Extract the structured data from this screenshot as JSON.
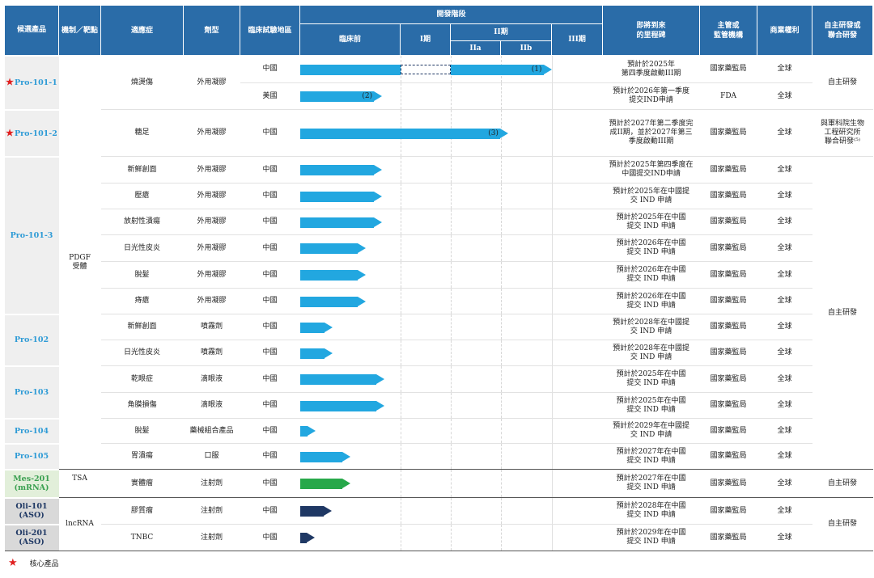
{
  "header": {
    "product": "候選產品",
    "mechanism": "機制／靶點",
    "indication": "適應症",
    "form": "劑型",
    "region": "臨床試驗地區",
    "stage": "開發階段",
    "preclinical": "臨床前",
    "phase1": "I期",
    "phase2": "II期",
    "phase2a": "IIa",
    "phase2b": "IIb",
    "phase3": "III期",
    "milestone": "即將到來\n的里程碑",
    "regulator": "主管或\n監管機構",
    "rights": "商業權利",
    "dev": "自主研發或\n聯合研發"
  },
  "colors": {
    "header": "#2a6ca8",
    "pdgf_arrow": "#22a7e0",
    "tsa_arrow": "#27a84a",
    "lncrna_arrow": "#1f3864",
    "star": "#e02020"
  },
  "stage_scale_note_units": "0=臨床前 start, 1=I期, 2=IIa, 3=IIb, 4=III期, 5=III期 end",
  "rows": [
    {
      "mech": "PDGF\n受體",
      "product": "Pro-101-1",
      "star": true,
      "style": "blue",
      "indication": "燒燙傷",
      "form": "外用凝膠",
      "region": "中國",
      "progress": 4.0,
      "label": "(1)",
      "phase1_dashed": true,
      "milestone": "預計於2025年\n第四季度啟動III期",
      "regulator": "國家藥監局",
      "rights": "全球",
      "dev": "自主研發"
    },
    {
      "mech": "PDGF\n受體",
      "product": "Pro-101-1",
      "star": true,
      "style": "blue",
      "indication": "燒燙傷",
      "form": "外用凝膠",
      "region": "美國",
      "progress": 0.82,
      "label": "(2)",
      "milestone": "預計於2026年第一季度\n提交IND申請",
      "regulator": "FDA",
      "rights": "全球",
      "dev": "自主研發"
    },
    {
      "mech": "PDGF\n受體",
      "product": "Pro-101-2",
      "star": true,
      "style": "blue",
      "indication": "糖足",
      "form": "外用凝膠",
      "region": "中國",
      "progress": 3.15,
      "label": "(3)",
      "milestone": "預計於2027年第二季度完\n成II期，並於2027年第三\n季度啟動III期",
      "regulator": "國家藥監局",
      "rights": "全球",
      "dev": "與軍科院生物\n工程研究所\n聯合研發⁽⁵⁾"
    },
    {
      "mech": "PDGF\n受體",
      "product": "Pro-101-3",
      "style": "blue",
      "indication": "新鮮創面",
      "form": "外用凝膠",
      "region": "中國",
      "progress": 0.82,
      "milestone": "預計於2025年第四季度在\n中國提交IND申請",
      "regulator": "國家藥監局",
      "rights": "全球",
      "dev": "自主研發"
    },
    {
      "mech": "PDGF\n受體",
      "product": "Pro-101-3",
      "style": "blue",
      "indication": "壓瘡",
      "form": "外用凝膠",
      "region": "中國",
      "progress": 0.82,
      "milestone": "預計於2025年在中國提\n交 IND 申請",
      "regulator": "國家藥監局",
      "rights": "全球",
      "dev": "自主研發"
    },
    {
      "mech": "PDGF\n受體",
      "product": "Pro-101-3",
      "style": "blue",
      "indication": "放射性潰瘍",
      "form": "外用凝膠",
      "region": "中國",
      "progress": 0.82,
      "milestone": "預計於2025年在中國\n提交 IND 申請",
      "regulator": "國家藥監局",
      "rights": "全球",
      "dev": "自主研發"
    },
    {
      "mech": "PDGF\n受體",
      "product": "Pro-101-3",
      "style": "blue",
      "indication": "日光性皮炎",
      "form": "外用凝膠",
      "region": "中國",
      "progress": 0.66,
      "milestone": "預計於2026年在中國\n提交 IND 申請",
      "regulator": "國家藥監局",
      "rights": "全球",
      "dev": "自主研發"
    },
    {
      "mech": "PDGF\n受體",
      "product": "Pro-101-3",
      "style": "blue",
      "indication": "脫髮",
      "form": "外用凝膠",
      "region": "中國",
      "progress": 0.66,
      "milestone": "預計於2026年在中國\n提交 IND 申請",
      "regulator": "國家藥監局",
      "rights": "全球",
      "dev": "自主研發"
    },
    {
      "mech": "PDGF\n受體",
      "product": "Pro-101-3",
      "style": "blue",
      "indication": "痔瘡",
      "form": "外用凝膠",
      "region": "中國",
      "progress": 0.66,
      "milestone": "預計於2026年在中國\n提交 IND 申請",
      "regulator": "國家藥監局",
      "rights": "全球",
      "dev": "自主研發"
    },
    {
      "mech": "PDGF\n受體",
      "product": "Pro-102",
      "style": "blue",
      "indication": "新鮮創面",
      "form": "噴霧劑",
      "region": "中國",
      "progress": 0.33,
      "milestone": "預計於2028年在中國提\n交 IND 申請",
      "regulator": "國家藥監局",
      "rights": "全球",
      "dev": "自主研發"
    },
    {
      "mech": "PDGF\n受體",
      "product": "Pro-102",
      "style": "blue",
      "indication": "日光性皮炎",
      "form": "噴霧劑",
      "region": "中國",
      "progress": 0.33,
      "milestone": "預計於2028年在中國提\n交 IND 申請",
      "regulator": "國家藥監局",
      "rights": "全球",
      "dev": "自主研發"
    },
    {
      "mech": "PDGF\n受體",
      "product": "Pro-103",
      "style": "blue",
      "indication": "乾眼症",
      "form": "滴眼液",
      "region": "中國",
      "progress": 0.84,
      "milestone": "預計於2025年在中國\n提交 IND 申請",
      "regulator": "國家藥監局",
      "rights": "全球",
      "dev": "自主研發"
    },
    {
      "mech": "PDGF\n受體",
      "product": "Pro-103",
      "style": "blue",
      "indication": "角膜損傷",
      "form": "滴眼液",
      "region": "中國",
      "progress": 0.84,
      "milestone": "預計於2025年在中國\n提交 IND 申請",
      "regulator": "國家藥監局",
      "rights": "全球",
      "dev": "自主研發"
    },
    {
      "mech": "PDGF\n受體",
      "product": "Pro-104",
      "style": "blue",
      "indication": "脫髮",
      "form": "藥械組合產品",
      "region": "中國",
      "progress": 0.16,
      "milestone": "預計於2029年在中國提\n交 IND 申請",
      "regulator": "國家藥監局",
      "rights": "全球",
      "dev": "自主研發"
    },
    {
      "mech": "PDGF\n受體",
      "product": "Pro-105",
      "style": "blue",
      "indication": "胃潰瘍",
      "form": "口服",
      "region": "中國",
      "progress": 0.5,
      "milestone": "預計於2027年在中國\n提交 IND 申請",
      "regulator": "國家藥監局",
      "rights": "全球",
      "dev": "自主研發"
    },
    {
      "mech": "TSA",
      "product": "Mes-201\n(mRNA)",
      "style": "green",
      "indication": "實體瘤",
      "form": "注射劑",
      "region": "中國",
      "progress": 0.5,
      "milestone": "預計於2027年在中國\n提交 IND 申請",
      "regulator": "國家藥監局",
      "rights": "全球",
      "dev": "自主研發"
    },
    {
      "mech": "lncRNA",
      "product": "Oli-101\n(ASO)",
      "style": "navy",
      "indication": "膠質瘤",
      "form": "注射劑",
      "region": "中國",
      "progress": 0.32,
      "milestone": "預計於2028年在中國\n提交 IND 申請",
      "regulator": "國家藥監局",
      "rights": "全球",
      "dev": "自主研發"
    },
    {
      "mech": "lncRNA",
      "product": "Oli-201\n(ASO)",
      "style": "navy",
      "indication": "TNBC",
      "form": "注射劑",
      "region": "中國",
      "progress": 0.15,
      "milestone": "預計於2029年在中國\n提交 IND 申請",
      "regulator": "國家藥監局",
      "rights": "全球",
      "dev": "自主研發"
    }
  ],
  "legend": {
    "label": "核心產品",
    "icon": "star-icon"
  }
}
